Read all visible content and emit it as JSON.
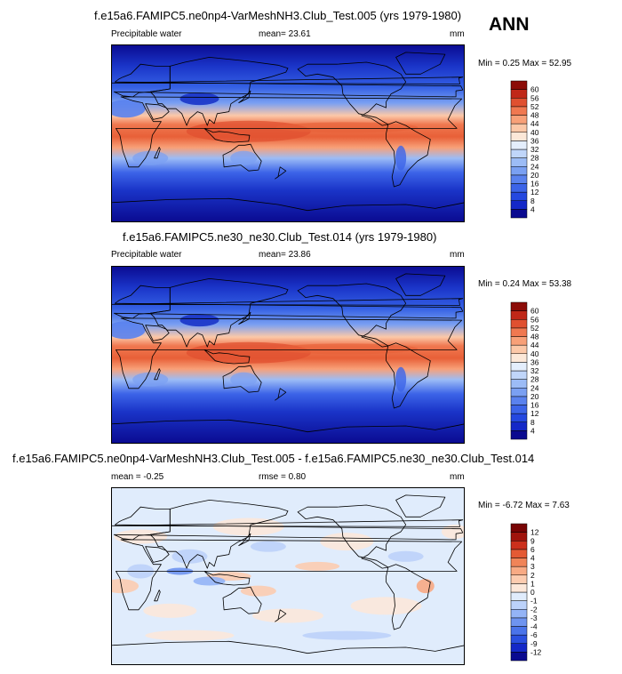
{
  "season": "ANN",
  "panels": [
    {
      "title": "f.e15a6.FAMIPC5.ne0np4-VarMeshNH3.Club_Test.005 (yrs 1979-1980)",
      "variable": "Precipitable water",
      "stat": "mean=  23.61",
      "units": "mm",
      "minmax": "Min =   0.25 Max =  52.95"
    },
    {
      "title": "f.e15a6.FAMIPC5.ne30_ne30.Club_Test.014 (yrs 1979-1980)",
      "variable": "Precipitable water",
      "stat": "mean=  23.86",
      "units": "mm",
      "minmax": "Min =  0.24 Max =  53.38"
    },
    {
      "title": "f.e15a6.FAMIPC5.ne0np4-VarMeshNH3.Club_Test.005 - f.e15a6.FAMIPC5.ne30_ne30.Club_Test.014",
      "stat_left": "mean =  -0.25",
      "stat_mid": "rmse =  0.80",
      "units": "mm",
      "minmax": "Min =  -6.72 Max =   7.63"
    }
  ],
  "chart_data": [
    {
      "type": "heatmap",
      "title": "f.e15a6.FAMIPC5.ne0np4-VarMeshNH3.Club_Test.005 (yrs 1979-1980)",
      "variable": "Precipitable water",
      "units": "mm",
      "mean": 23.61,
      "min": 0.25,
      "max": 52.95,
      "colorbar_levels": [
        4,
        8,
        12,
        16,
        20,
        24,
        28,
        32,
        36,
        40,
        44,
        48,
        52,
        56,
        60
      ],
      "colors": [
        "#0a0a90",
        "#1428c8",
        "#2448e0",
        "#3c64e8",
        "#5a82ee",
        "#7aa0f2",
        "#9cbcf6",
        "#c0d6fa",
        "#e4eefc",
        "#fce8d8",
        "#fcc8a8",
        "#f8a078",
        "#f07850",
        "#e05030",
        "#c02818",
        "#8c0c08"
      ]
    },
    {
      "type": "heatmap",
      "title": "f.e15a6.FAMIPC5.ne30_ne30.Club_Test.014 (yrs 1979-1980)",
      "variable": "Precipitable water",
      "units": "mm",
      "mean": 23.86,
      "min": 0.24,
      "max": 53.38,
      "colorbar_levels": [
        4,
        8,
        12,
        16,
        20,
        24,
        28,
        32,
        36,
        40,
        44,
        48,
        52,
        56,
        60
      ],
      "colors": [
        "#0a0a90",
        "#1428c8",
        "#2448e0",
        "#3c64e8",
        "#5a82ee",
        "#7aa0f2",
        "#9cbcf6",
        "#c0d6fa",
        "#e4eefc",
        "#fce8d8",
        "#fcc8a8",
        "#f8a078",
        "#f07850",
        "#e05030",
        "#c02818",
        "#8c0c08"
      ]
    },
    {
      "type": "heatmap",
      "title": "f.e15a6.FAMIPC5.ne0np4-VarMeshNH3.Club_Test.005 - f.e15a6.FAMIPC5.ne30_ne30.Club_Test.014",
      "units": "mm",
      "mean": -0.25,
      "rmse": 0.8,
      "min": -6.72,
      "max": 7.63,
      "colorbar_levels": [
        -12,
        -9,
        -6,
        -4,
        -3,
        -2,
        -1,
        0,
        1,
        2,
        3,
        4,
        6,
        9,
        12
      ],
      "colors": [
        "#0a0a90",
        "#1428c8",
        "#2a50e0",
        "#4a74ea",
        "#6e94f0",
        "#94b4f6",
        "#bcd2fa",
        "#e0ecfc",
        "#fce8da",
        "#fcccb0",
        "#f8aa84",
        "#f08458",
        "#e45a34",
        "#cc301c",
        "#a0140c",
        "#780404"
      ]
    }
  ]
}
